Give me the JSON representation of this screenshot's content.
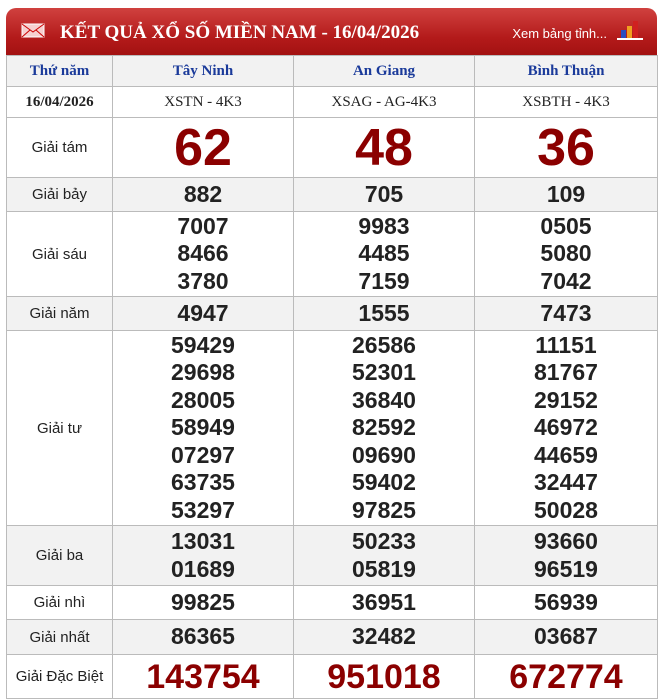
{
  "header": {
    "title": "KẾT QUẢ XỔ SỐ MIỀN NAM - 16/04/2026",
    "more_link": "Xem bảng tỉnh...",
    "icons": [
      "mail-icon",
      "bar-chart-icon"
    ]
  },
  "table": {
    "day": "Thứ năm",
    "date": "16/04/2026",
    "provinces": [
      {
        "name": "Tây Ninh",
        "code": "XSTN - 4K3"
      },
      {
        "name": "An Giang",
        "code": "XSAG - AG-4K3"
      },
      {
        "name": "Bình Thuận",
        "code": "XSBTH - 4K3"
      }
    ],
    "prizes": [
      {
        "label": "Giải tám",
        "values": [
          [
            "62"
          ],
          [
            "48"
          ],
          [
            "36"
          ]
        ]
      },
      {
        "label": "Giải bảy",
        "values": [
          [
            "882"
          ],
          [
            "705"
          ],
          [
            "109"
          ]
        ]
      },
      {
        "label": "Giải sáu",
        "values": [
          [
            "7007",
            "8466",
            "3780"
          ],
          [
            "9983",
            "4485",
            "7159"
          ],
          [
            "0505",
            "5080",
            "7042"
          ]
        ]
      },
      {
        "label": "Giải năm",
        "values": [
          [
            "4947"
          ],
          [
            "1555"
          ],
          [
            "7473"
          ]
        ]
      },
      {
        "label": "Giải tư",
        "values": [
          [
            "59429",
            "29698",
            "28005",
            "58949",
            "07297",
            "63735",
            "53297"
          ],
          [
            "26586",
            "52301",
            "36840",
            "82592",
            "09690",
            "59402",
            "97825"
          ],
          [
            "11151",
            "81767",
            "29152",
            "46972",
            "44659",
            "32447",
            "50028"
          ]
        ]
      },
      {
        "label": "Giải ba",
        "values": [
          [
            "13031",
            "01689"
          ],
          [
            "50233",
            "05819"
          ],
          [
            "93660",
            "96519"
          ]
        ]
      },
      {
        "label": "Giải nhì",
        "values": [
          [
            "99825"
          ],
          [
            "36951"
          ],
          [
            "56939"
          ]
        ]
      },
      {
        "label": "Giải nhất",
        "values": [
          [
            "86365"
          ],
          [
            "32482"
          ],
          [
            "03687"
          ]
        ]
      },
      {
        "label": "Giải Đặc Biệt",
        "values": [
          [
            "143754"
          ],
          [
            "951018"
          ],
          [
            "672774"
          ]
        ]
      }
    ]
  },
  "colors": {
    "header_red": "#b31a1a",
    "province_blue": "#1a3a9a",
    "highlight_red": "#8b0000"
  }
}
